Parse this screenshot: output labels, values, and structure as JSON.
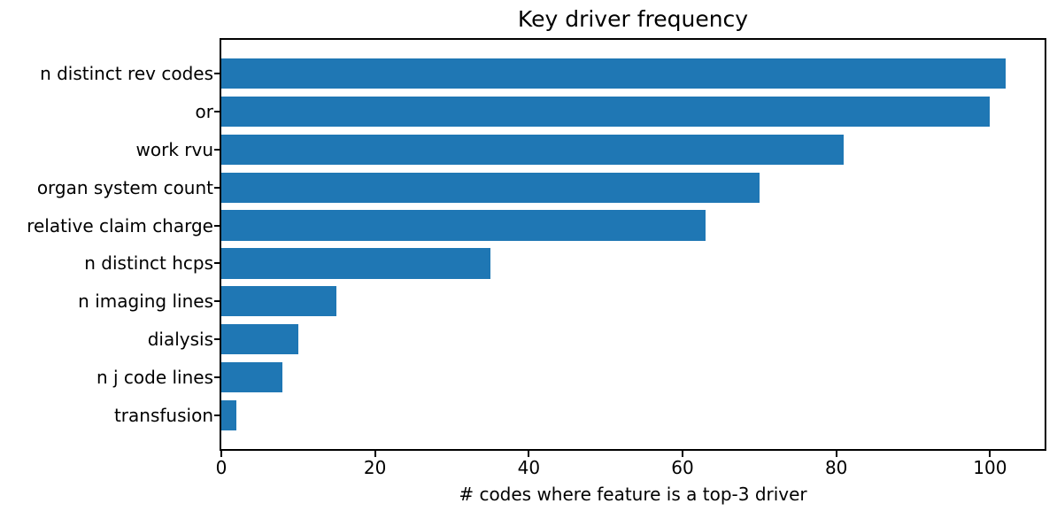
{
  "chart_data": {
    "type": "bar",
    "orientation": "horizontal",
    "title": "Key driver frequency",
    "xlabel": "# codes where feature is a top-3 driver",
    "categories": [
      "n distinct rev codes",
      "or",
      "work rvu",
      "organ system count",
      "relative claim charge",
      "n distinct hcps",
      "n imaging lines",
      "dialysis",
      "n j code lines",
      "transfusion"
    ],
    "values": [
      102,
      100,
      81,
      70,
      63,
      35,
      15,
      10,
      8,
      2
    ],
    "xlim": [
      0,
      107.1
    ],
    "xticks": [
      0,
      20,
      40,
      60,
      80,
      100
    ],
    "bar_color": "#1f77b4",
    "text_color": "#000000",
    "grid": false,
    "legend": "none"
  }
}
